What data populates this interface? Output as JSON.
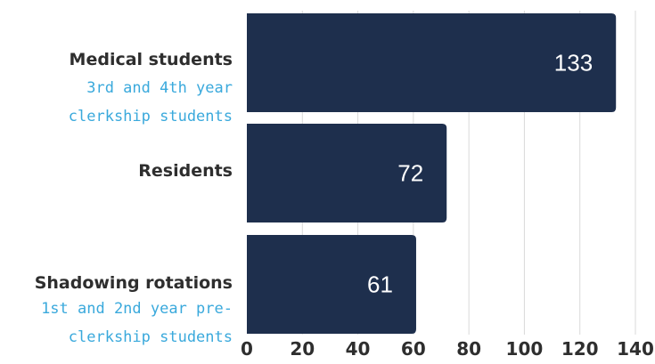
{
  "chart_data": {
    "type": "bar",
    "orientation": "horizontal",
    "categories": [
      {
        "label": "Medical students",
        "subtitle": [
          "3rd and 4th year",
          "clerkship students"
        ]
      },
      {
        "label": "Residents",
        "subtitle": []
      },
      {
        "label": "Shadowing rotations",
        "subtitle": [
          "1st and 2nd year pre-",
          "clerkship students"
        ]
      }
    ],
    "values": [
      133,
      72,
      61
    ],
    "value_labels": [
      "133",
      "72",
      "61"
    ],
    "xlim": [
      0,
      140
    ],
    "xticks": [
      "0",
      "20",
      "40",
      "60",
      "80",
      "100",
      "120",
      "140"
    ],
    "grid": true,
    "bar_color": "#1e2f4d",
    "grid_color": "#d9d9d9",
    "subtitle_color": "#3aa9dc"
  }
}
